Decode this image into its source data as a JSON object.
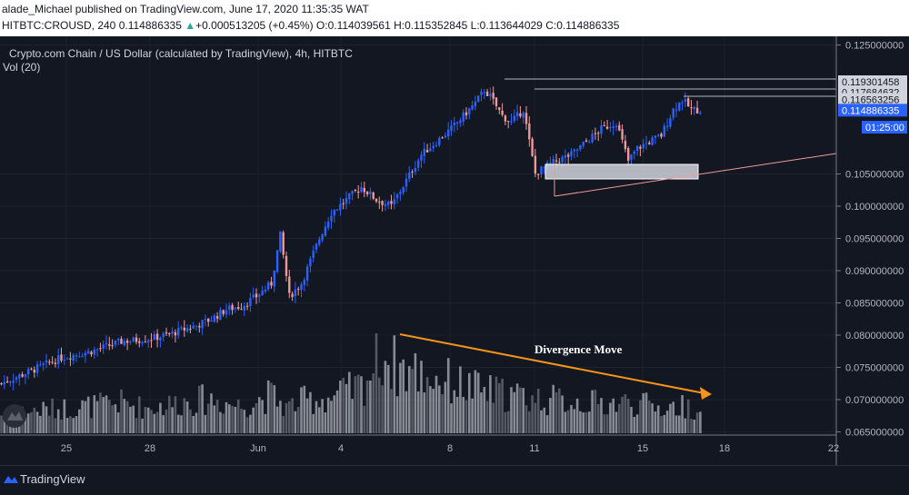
{
  "header": {
    "line1": "alade_Michael published on TradingView.com, June 17, 2020 11:35:35 WAT",
    "symbol": "HITBTC:CROUSD, 240",
    "last": "0.114886335",
    "change_arrow": "▲",
    "change": "+0.000513205 (+0.45%)",
    "o_label": "O:",
    "o_value": "0.114039561",
    "h_label": "H:",
    "h_value": "0.115352845",
    "l_label": "L:",
    "l_value": "0.113644029",
    "c_label": "C:",
    "c_value": "0.114886335"
  },
  "legend": {
    "title": "Crypto.com Chain / US Dollar (calculated by TradingView), 4h, HITBTC",
    "vol": "Vol (20)"
  },
  "annotation": {
    "text": "Divergence Move"
  },
  "footer": {
    "brand": "TradingView"
  },
  "colors": {
    "up": "#2962ff",
    "down": "#ef9a9a",
    "bg": "#131722",
    "arrow": "#f7931a",
    "grid": "#1e222d"
  },
  "chart_data": {
    "type": "candlestick",
    "x_ticks": [
      "25",
      "28",
      "Jun",
      "4",
      "8",
      "11",
      "15",
      "18",
      "22"
    ],
    "y_ticks": [
      "0.065000000",
      "0.070000000",
      "0.075000000",
      "0.080000000",
      "0.085000000",
      "0.090000000",
      "0.095000000",
      "0.100000000",
      "0.105000000",
      "0.125000000"
    ],
    "ylim": [
      0.0645,
      0.1255
    ],
    "price_labels": [
      {
        "value": "0.119301458",
        "price": 0.119301458,
        "style": "box"
      },
      {
        "value": "0.117684632",
        "price": 0.117684632,
        "style": "box"
      },
      {
        "value": "0.116563256",
        "price": 0.116563256,
        "style": "box"
      },
      {
        "value": "0.114886335",
        "price": 0.114886335,
        "style": "current"
      },
      {
        "value": "01:25:00",
        "price": 0.11225,
        "style": "timer"
      }
    ],
    "close_trend": [
      [
        0,
        0.0725
      ],
      [
        10,
        0.0745
      ],
      [
        20,
        0.0765
      ],
      [
        30,
        0.0775
      ],
      [
        40,
        0.079
      ],
      [
        50,
        0.0795
      ],
      [
        55,
        0.08
      ],
      [
        65,
        0.0815
      ],
      [
        70,
        0.0825
      ],
      [
        75,
        0.084
      ],
      [
        80,
        0.0845
      ],
      [
        85,
        0.086
      ],
      [
        90,
        0.088
      ],
      [
        93,
        0.0955
      ],
      [
        96,
        0.086
      ],
      [
        100,
        0.088
      ],
      [
        106,
        0.095
      ],
      [
        110,
        0.099
      ],
      [
        115,
        0.101
      ],
      [
        120,
        0.103
      ],
      [
        125,
        0.101
      ],
      [
        130,
        0.1
      ],
      [
        135,
        0.104
      ],
      [
        140,
        0.108
      ],
      [
        145,
        0.11
      ],
      [
        150,
        0.112
      ],
      [
        153,
        0.1135
      ],
      [
        158,
        0.116
      ],
      [
        161,
        0.118
      ],
      [
        163,
        0.117
      ],
      [
        167,
        0.114
      ],
      [
        170,
        0.113
      ],
      [
        174,
        0.115
      ],
      [
        176,
        0.11
      ],
      [
        178,
        0.105
      ],
      [
        181,
        0.106
      ],
      [
        185,
        0.107
      ],
      [
        190,
        0.108
      ],
      [
        195,
        0.11
      ],
      [
        200,
        0.112
      ],
      [
        205,
        0.113
      ],
      [
        209,
        0.107
      ],
      [
        212,
        0.109
      ],
      [
        216,
        0.11
      ],
      [
        220,
        0.111
      ],
      [
        224,
        0.115
      ],
      [
        227,
        0.1165
      ],
      [
        230,
        0.115
      ],
      [
        233,
        0.1149
      ]
    ],
    "volume_trend": [
      [
        0,
        0.22
      ],
      [
        15,
        0.28
      ],
      [
        30,
        0.32
      ],
      [
        40,
        0.36
      ],
      [
        48,
        0.3
      ],
      [
        55,
        0.33
      ],
      [
        62,
        0.38
      ],
      [
        70,
        0.4
      ],
      [
        80,
        0.32
      ],
      [
        90,
        0.45
      ],
      [
        95,
        0.3
      ],
      [
        100,
        0.38
      ],
      [
        110,
        0.42
      ],
      [
        120,
        0.55
      ],
      [
        127,
        0.95
      ],
      [
        131,
        0.8
      ],
      [
        140,
        0.7
      ],
      [
        150,
        0.6
      ],
      [
        160,
        0.5
      ],
      [
        170,
        0.45
      ],
      [
        180,
        0.4
      ],
      [
        190,
        0.38
      ],
      [
        200,
        0.35
      ],
      [
        210,
        0.36
      ],
      [
        220,
        0.3
      ],
      [
        230,
        0.32
      ],
      [
        233,
        0.18
      ]
    ]
  }
}
